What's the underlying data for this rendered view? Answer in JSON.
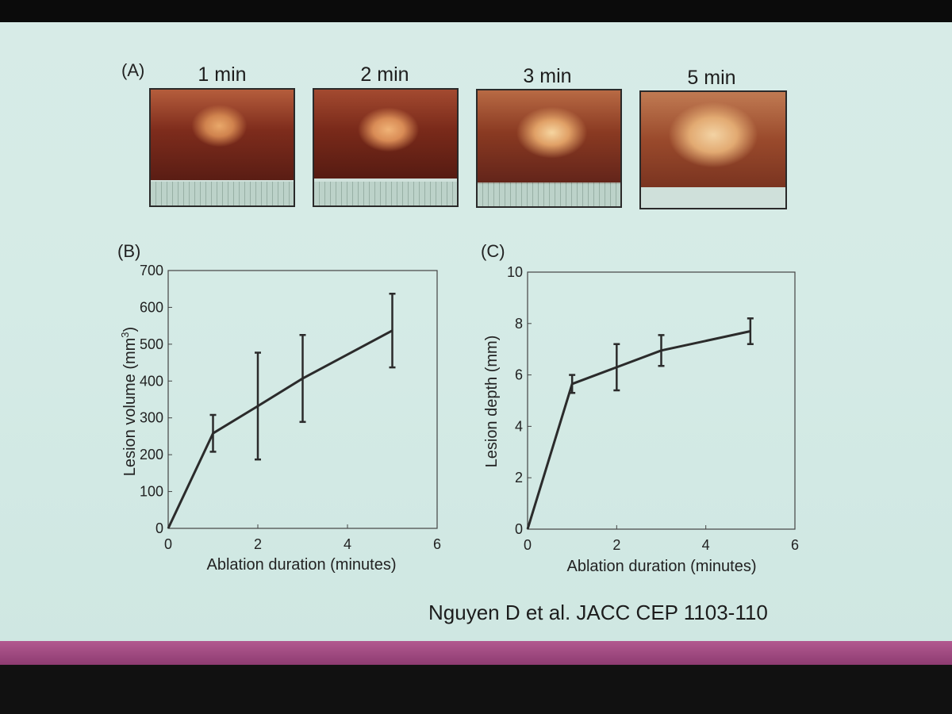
{
  "panel_a": {
    "letter": "(A)",
    "thumbnails": [
      {
        "label": "1 min"
      },
      {
        "label": "2 min"
      },
      {
        "label": "3 min"
      },
      {
        "label": "5 min"
      }
    ]
  },
  "chart_data": [
    {
      "type": "line",
      "panel": "(B)",
      "title": "",
      "xlabel": "Ablation duration (minutes)",
      "ylabel": "Lesion volume (mm",
      "ylabel_sup": "3",
      "ylabel_end": ")",
      "xlim": [
        0,
        6
      ],
      "ylim": [
        0,
        700
      ],
      "xticks": [
        0,
        2,
        4,
        6
      ],
      "yticks": [
        0,
        100,
        200,
        300,
        400,
        500,
        600,
        700
      ],
      "grid": false,
      "series": [
        {
          "x": [
            0,
            1,
            2,
            3,
            5
          ],
          "y": [
            0,
            258,
            332,
            407,
            537
          ],
          "err_low": [
            0,
            50,
            145,
            118,
            100
          ],
          "err_high": [
            0,
            50,
            145,
            118,
            100
          ]
        }
      ]
    },
    {
      "type": "line",
      "panel": "(C)",
      "title": "",
      "xlabel": "Ablation duration (minutes)",
      "ylabel": "Lesion depth (mm)",
      "xlim": [
        0,
        6
      ],
      "ylim": [
        0,
        10
      ],
      "xticks": [
        0,
        2,
        4,
        6
      ],
      "yticks": [
        0,
        2,
        4,
        6,
        8,
        10
      ],
      "grid": false,
      "series": [
        {
          "x": [
            0,
            1,
            2,
            3,
            5
          ],
          "y": [
            0,
            5.65,
            6.3,
            6.95,
            7.7
          ],
          "err_low": [
            0,
            0.35,
            0.9,
            0.6,
            0.5
          ],
          "err_high": [
            0,
            0.35,
            0.9,
            0.6,
            0.5
          ]
        }
      ]
    }
  ],
  "citation": "Nguyen D et al. JACC CEP 1103-110",
  "colors": {
    "slide_bg": "#d5ebe6",
    "line": "#2b2b2b",
    "bottom_bar": "#a14d83"
  }
}
